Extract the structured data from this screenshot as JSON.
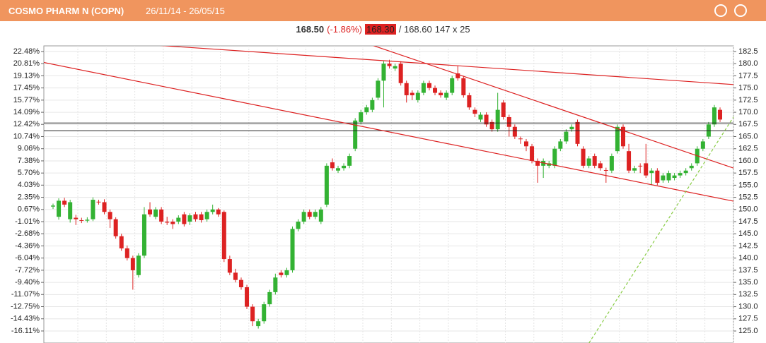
{
  "header": {
    "title": "COSMO PHARM N (COPN)",
    "dates": "26/11/14 - 26/05/15"
  },
  "quote": {
    "last": "168.50",
    "change": "(-1.86%)",
    "bid": "168.30",
    "ask": "/ 168.60",
    "size": "147 x 25"
  },
  "chart_data": {
    "type": "candlestick",
    "up_color": "#33b233",
    "down_color": "#dd2222",
    "grid": true,
    "ylim": [
      122.53,
      183.66
    ],
    "yticks": [
      {
        "value": 125,
        "label": "125.0"
      },
      {
        "value": 127.5,
        "label": "127.5"
      },
      {
        "value": 130,
        "label": "130.0"
      },
      {
        "value": 132.5,
        "label": "132.5"
      },
      {
        "value": 135,
        "label": "135.0"
      },
      {
        "value": 137.5,
        "label": "137.5"
      },
      {
        "value": 140,
        "label": "140.0"
      },
      {
        "value": 142.5,
        "label": "142.5"
      },
      {
        "value": 145,
        "label": "145.0"
      },
      {
        "value": 147.5,
        "label": "147.5"
      },
      {
        "value": 150,
        "label": "150.0"
      },
      {
        "value": 152.5,
        "label": "152.5"
      },
      {
        "value": 155,
        "label": "155.0"
      },
      {
        "value": 157.5,
        "label": "157.5"
      },
      {
        "value": 160,
        "label": "160.0"
      },
      {
        "value": 162.5,
        "label": "162.5"
      },
      {
        "value": 165,
        "label": "165.0"
      },
      {
        "value": 167.5,
        "label": "167.5"
      },
      {
        "value": 170,
        "label": "170.0"
      },
      {
        "value": 172.5,
        "label": "172.5"
      },
      {
        "value": 175,
        "label": "175.0"
      },
      {
        "value": 177.5,
        "label": "177.5"
      },
      {
        "value": 180,
        "label": "180.0"
      },
      {
        "value": 182.5,
        "label": "182.5"
      }
    ],
    "y2lim": [
      -17.77,
      23.26
    ],
    "y2ticks": [
      {
        "value": 22.48,
        "label": "22.48%"
      },
      {
        "value": 20.81,
        "label": "20.81%"
      },
      {
        "value": 19.13,
        "label": "19.13%"
      },
      {
        "value": 17.45,
        "label": "17.45%"
      },
      {
        "value": 15.77,
        "label": "15.77%"
      },
      {
        "value": 14.09,
        "label": "14.09%"
      },
      {
        "value": 12.42,
        "label": "12.42%"
      },
      {
        "value": 10.74,
        "label": "10.74%"
      },
      {
        "value": 9.06,
        "label": "9.06%"
      },
      {
        "value": 7.38,
        "label": "7.38%"
      },
      {
        "value": 5.7,
        "label": "5.70%"
      },
      {
        "value": 4.03,
        "label": "4.03%"
      },
      {
        "value": 2.35,
        "label": "2.35%"
      },
      {
        "value": 0.67,
        "label": "0.67%"
      },
      {
        "value": -1.01,
        "label": "-1.01%"
      },
      {
        "value": -2.68,
        "label": "-2.68%"
      },
      {
        "value": -4.36,
        "label": "-4.36%"
      },
      {
        "value": -6.04,
        "label": "-6.04%"
      },
      {
        "value": -7.72,
        "label": "-7.72%"
      },
      {
        "value": -9.4,
        "label": "-9.40%"
      },
      {
        "value": -11.07,
        "label": "-11.07%"
      },
      {
        "value": -12.75,
        "label": "-12.75%"
      },
      {
        "value": -14.43,
        "label": "-14.43%"
      },
      {
        "value": -16.11,
        "label": "-16.11%"
      }
    ],
    "candles": [
      [
        150.6,
        151.2,
        150.1,
        150.8
      ],
      [
        148.5,
        152.3,
        147.9,
        151.8
      ],
      [
        151.8,
        152.4,
        150.5,
        151.0
      ],
      [
        148.0,
        152.0,
        147.3,
        151.5
      ],
      [
        148.3,
        148.9,
        146.8,
        148.0
      ],
      [
        147.8,
        148.3,
        147.2,
        147.7
      ],
      [
        147.7,
        148.4,
        147.3,
        147.9
      ],
      [
        148.0,
        152.5,
        147.6,
        152.0
      ],
      [
        151.6,
        152.0,
        151.0,
        151.5
      ],
      [
        151.5,
        152.1,
        149.0,
        149.5
      ],
      [
        149.5,
        150.0,
        146.2,
        148.0
      ],
      [
        148.0,
        148.4,
        144.0,
        144.5
      ],
      [
        144.5,
        145.0,
        141.5,
        142.0
      ],
      [
        142.0,
        142.6,
        139.5,
        140.0
      ],
      [
        140.0,
        140.5,
        133.5,
        137.5
      ],
      [
        136.5,
        141.0,
        136.0,
        140.5
      ],
      [
        140.5,
        150.5,
        140.0,
        149.0
      ],
      [
        150.0,
        151.5,
        148.5,
        149.0
      ],
      [
        148.5,
        150.5,
        148.0,
        150.0
      ],
      [
        150.0,
        150.5,
        147.0,
        147.5
      ],
      [
        147.5,
        148.5,
        146.8,
        147.3
      ],
      [
        147.5,
        148.0,
        146.0,
        147.0
      ],
      [
        147.5,
        148.8,
        147.0,
        148.3
      ],
      [
        149.0,
        149.5,
        146.5,
        147.0
      ],
      [
        147.5,
        149.2,
        146.8,
        148.8
      ],
      [
        149.0,
        149.5,
        147.5,
        148.0
      ],
      [
        149.0,
        149.5,
        147.3,
        147.8
      ],
      [
        148.0,
        150.0,
        147.5,
        149.5
      ],
      [
        149.5,
        151.0,
        149.0,
        150.0
      ],
      [
        150.0,
        150.3,
        148.5,
        149.0
      ],
      [
        149.5,
        149.8,
        139.2,
        139.8
      ],
      [
        139.8,
        140.5,
        136.5,
        137.0
      ],
      [
        137.0,
        137.8,
        135.0,
        135.5
      ],
      [
        135.5,
        136.0,
        133.5,
        134.0
      ],
      [
        134.0,
        134.5,
        129.5,
        130.0
      ],
      [
        130.0,
        130.5,
        126.0,
        127.0
      ],
      [
        126.0,
        127.5,
        125.5,
        127.0
      ],
      [
        127.0,
        131.0,
        126.5,
        130.5
      ],
      [
        130.5,
        133.5,
        130.0,
        133.0
      ],
      [
        133.0,
        136.8,
        132.5,
        136.0
      ],
      [
        137.0,
        137.5,
        136.0,
        136.5
      ],
      [
        136.5,
        138.0,
        136.0,
        137.5
      ],
      [
        137.5,
        146.5,
        137.0,
        146.0
      ],
      [
        146.0,
        148.0,
        145.5,
        147.5
      ],
      [
        147.5,
        150.0,
        147.0,
        149.5
      ],
      [
        149.5,
        150.0,
        148.0,
        148.5
      ],
      [
        148.5,
        150.0,
        148.0,
        149.5
      ],
      [
        147.5,
        150.5,
        147.0,
        150.0
      ],
      [
        151.0,
        159.5,
        150.5,
        159.0
      ],
      [
        159.7,
        160.5,
        158.0,
        158.5
      ],
      [
        158.0,
        159.0,
        157.5,
        158.5
      ],
      [
        158.5,
        159.5,
        158.0,
        159.0
      ],
      [
        159.0,
        161.5,
        158.5,
        161.0
      ],
      [
        162.5,
        168.8,
        162.0,
        168.3
      ],
      [
        168.0,
        170.5,
        167.5,
        170.0
      ],
      [
        170.0,
        171.5,
        169.5,
        171.0
      ],
      [
        170.5,
        173.0,
        170.0,
        172.5
      ],
      [
        173.0,
        177.0,
        172.5,
        176.5
      ],
      [
        176.5,
        180.5,
        171.0,
        180.0
      ],
      [
        180.0,
        180.8,
        179.0,
        179.5
      ],
      [
        179.0,
        180.0,
        178.5,
        179.5
      ],
      [
        180.0,
        180.5,
        175.5,
        176.0
      ],
      [
        176.0,
        176.5,
        172.0,
        173.5
      ],
      [
        174.0,
        174.5,
        172.5,
        173.5
      ],
      [
        172.5,
        174.5,
        172.0,
        174.0
      ],
      [
        174.0,
        176.5,
        173.5,
        176.0
      ],
      [
        176.0,
        176.5,
        174.5,
        175.0
      ],
      [
        175.0,
        175.5,
        173.5,
        174.0
      ],
      [
        174.0,
        174.5,
        173.0,
        173.5
      ],
      [
        173.0,
        174.5,
        172.5,
        174.0
      ],
      [
        174.0,
        177.5,
        173.5,
        177.0
      ],
      [
        178.0,
        179.5,
        176.5,
        177.0
      ],
      [
        177.0,
        177.5,
        173.0,
        173.5
      ],
      [
        173.5,
        174.0,
        170.5,
        171.0
      ],
      [
        170.5,
        171.0,
        169.0,
        169.7
      ],
      [
        168.5,
        170.0,
        168.0,
        169.5
      ],
      [
        169.5,
        170.0,
        167.0,
        167.5
      ],
      [
        168.0,
        168.5,
        166.0,
        166.5
      ],
      [
        166.5,
        174.0,
        166.0,
        170.5
      ],
      [
        172.0,
        172.5,
        168.5,
        169.0
      ],
      [
        169.0,
        169.5,
        165.0,
        167.0
      ],
      [
        167.0,
        167.5,
        164.5,
        165.0
      ],
      [
        164.6,
        165.0,
        163.5,
        164.5
      ],
      [
        164.0,
        164.5,
        162.0,
        163.0
      ],
      [
        163.0,
        163.5,
        159.5,
        160.0
      ],
      [
        160.0,
        160.5,
        155.5,
        159.0
      ],
      [
        159.0,
        160.5,
        156.5,
        160.0
      ],
      [
        159.0,
        160.0,
        158.5,
        159.5
      ],
      [
        159.0,
        163.0,
        158.5,
        162.5
      ],
      [
        162.5,
        164.5,
        162.0,
        164.0
      ],
      [
        164.0,
        166.5,
        163.5,
        166.0
      ],
      [
        166.5,
        167.5,
        166.0,
        167.0
      ],
      [
        168.0,
        168.5,
        163.0,
        163.5
      ],
      [
        162.5,
        163.0,
        158.5,
        159.0
      ],
      [
        159.0,
        161.0,
        158.5,
        160.5
      ],
      [
        161.0,
        161.5,
        158.5,
        159.0
      ],
      [
        159.5,
        160.0,
        158.0,
        158.5
      ],
      [
        158.1,
        158.6,
        155.5,
        158.0
      ],
      [
        158.0,
        161.5,
        157.5,
        161.0
      ],
      [
        162.0,
        167.5,
        161.5,
        167.0
      ],
      [
        167.0,
        167.5,
        162.5,
        163.0
      ],
      [
        162.0,
        163.5,
        157.5,
        158.0
      ],
      [
        158.0,
        159.0,
        157.5,
        158.5
      ],
      [
        159.0,
        159.5,
        157.5,
        158.9
      ],
      [
        159.5,
        163.5,
        156.5,
        157.0
      ],
      [
        157.5,
        158.5,
        155.0,
        158.0
      ],
      [
        158.0,
        158.5,
        155.0,
        155.5
      ],
      [
        156.0,
        157.5,
        155.5,
        157.0
      ],
      [
        156.0,
        158.0,
        155.5,
        157.5
      ],
      [
        156.5,
        157.5,
        156.0,
        157.0
      ],
      [
        157.0,
        158.0,
        156.5,
        157.5
      ],
      [
        157.5,
        158.5,
        157.0,
        158.0
      ],
      [
        158.5,
        159.5,
        158.0,
        159.0
      ],
      [
        159.5,
        163.0,
        159.0,
        162.5
      ],
      [
        162.5,
        164.5,
        162.0,
        164.0
      ],
      [
        165.0,
        168.0,
        164.5,
        167.5
      ],
      [
        167.5,
        171.5,
        167.0,
        171.0
      ],
      [
        170.5,
        171.0,
        168.0,
        168.5
      ]
    ],
    "trend_lines": [
      {
        "color": "#dd2222",
        "from": [
          1.86,
          185.1
        ],
        "to": [
          119.4,
          175.7
        ]
      },
      {
        "color": "#dd2222",
        "from": [
          -1.86,
          180.3
        ],
        "to": [
          119.4,
          151.7
        ]
      },
      {
        "color": "#dd2222",
        "from": [
          52.7,
          185.1
        ],
        "to": [
          119.4,
          158.5
        ]
      },
      {
        "color": "#88cc44",
        "dashed": true,
        "from": [
          94.0,
          122.5
        ],
        "to": [
          119.4,
          169.1
        ]
      }
    ],
    "hlines": [
      {
        "color": "#222222",
        "value": 167.8
      },
      {
        "color": "#222222",
        "value": 166.2
      }
    ]
  }
}
